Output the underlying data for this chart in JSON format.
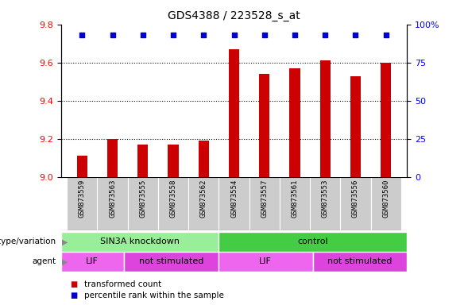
{
  "title": "GDS4388 / 223528_s_at",
  "samples": [
    "GSM873559",
    "GSM873563",
    "GSM873555",
    "GSM873558",
    "GSM873562",
    "GSM873554",
    "GSM873557",
    "GSM873561",
    "GSM873553",
    "GSM873556",
    "GSM873560"
  ],
  "bar_values": [
    9.11,
    9.2,
    9.17,
    9.17,
    9.19,
    9.67,
    9.54,
    9.57,
    9.61,
    9.53,
    9.6
  ],
  "percentile_values": [
    97,
    97,
    97,
    97,
    97,
    97,
    97,
    97,
    97,
    97,
    97
  ],
  "bar_color": "#cc0000",
  "percentile_color": "#0000cc",
  "ylim_left": [
    9.0,
    9.8
  ],
  "ylim_right": [
    0,
    100
  ],
  "yticks_left": [
    9.0,
    9.2,
    9.4,
    9.6,
    9.8
  ],
  "yticks_right": [
    0,
    25,
    50,
    75,
    100
  ],
  "ytick_labels_right": [
    "0",
    "25",
    "50",
    "75",
    "100%"
  ],
  "genotype_groups": [
    {
      "label": "SIN3A knockdown",
      "start": 0,
      "end": 5,
      "color": "#99ee99"
    },
    {
      "label": "control",
      "start": 5,
      "end": 11,
      "color": "#44cc44"
    }
  ],
  "agent_groups": [
    {
      "label": "LIF",
      "start": 0,
      "end": 2,
      "color": "#ee66ee"
    },
    {
      "label": "not stimulated",
      "start": 2,
      "end": 5,
      "color": "#dd44dd"
    },
    {
      "label": "LIF",
      "start": 5,
      "end": 8,
      "color": "#ee66ee"
    },
    {
      "label": "not stimulated",
      "start": 8,
      "end": 11,
      "color": "#dd44dd"
    }
  ],
  "legend_bar_label": "transformed count",
  "legend_pct_label": "percentile rank within the sample",
  "bar_width": 0.35,
  "xticklabel_bg": "#cccccc",
  "n_samples": 11
}
